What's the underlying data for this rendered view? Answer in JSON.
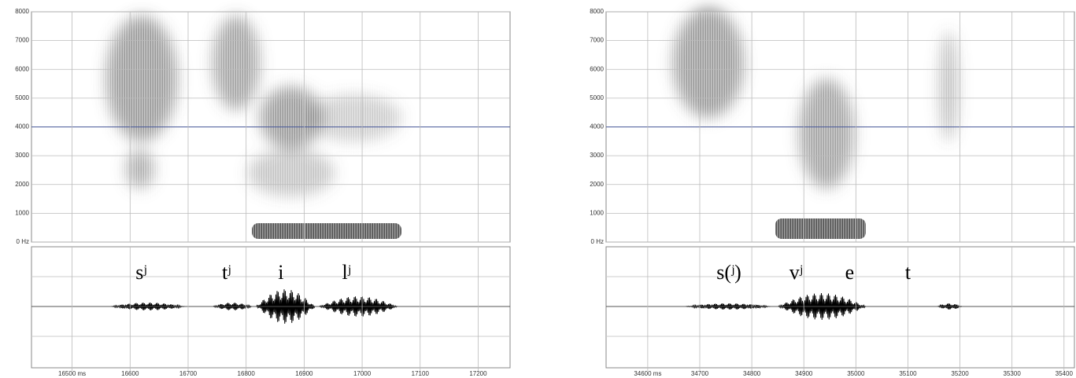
{
  "chart_data": [
    {
      "type": "spectrogram",
      "xlim": [
        16430,
        17255
      ],
      "xticks": [
        {
          "value": 16500,
          "label": "16500 ms"
        },
        16600,
        16700,
        16800,
        16900,
        17000,
        17100,
        17200
      ],
      "ylim": [
        0,
        8000
      ],
      "yticks": [
        {
          "value": 0,
          "label": "0 Hz"
        },
        1000,
        2000,
        3000,
        4000,
        5000,
        6000,
        7000,
        8000
      ],
      "segments": [
        {
          "label": "sʲ",
          "x": 16619
        },
        {
          "label": "tʲ",
          "x": 16766
        },
        {
          "label": "i",
          "x": 16860
        },
        {
          "label": "lʲ",
          "x": 16973
        }
      ]
    },
    {
      "type": "spectrogram",
      "xlim": [
        34520,
        35420
      ],
      "xticks": [
        {
          "value": 34600,
          "label": "34600 ms"
        },
        34700,
        34800,
        34900,
        35000,
        35100,
        35200,
        35300,
        35400
      ],
      "ylim": [
        0,
        8000
      ],
      "yticks": [
        {
          "value": 0,
          "label": "0 Hz"
        },
        1000,
        2000,
        3000,
        4000,
        5000,
        6000,
        7000,
        8000
      ],
      "segments": [
        {
          "label": "s(ʲ)",
          "x": 34756
        },
        {
          "label": "vʲ",
          "x": 34885
        },
        {
          "label": "e",
          "x": 34988
        },
        {
          "label": "t",
          "x": 35100
        }
      ]
    }
  ]
}
